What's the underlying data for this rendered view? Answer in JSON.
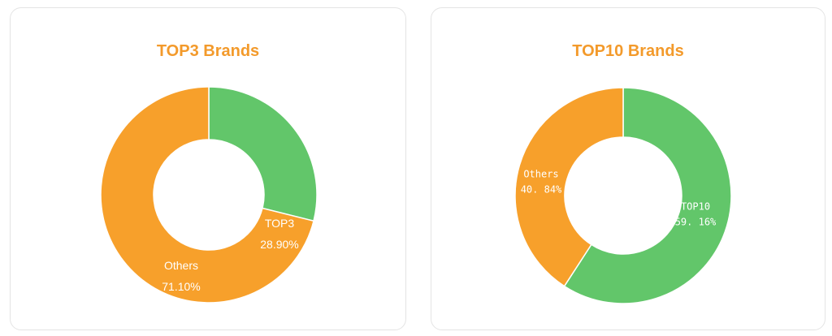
{
  "charts": [
    {
      "title": "TOP3 Brands",
      "chart_data": {
        "type": "pie",
        "donut": true,
        "title": "TOP3 Brands",
        "categories": [
          "TOP3",
          "Others"
        ],
        "values": [
          28.9,
          71.1
        ],
        "labels": [
          "28.90%",
          "71.10%"
        ],
        "colors": [
          "#62c66a",
          "#f7a02b"
        ]
      }
    },
    {
      "title": "TOP10 Brands",
      "chart_data": {
        "type": "pie",
        "donut": true,
        "title": "TOP10 Brands",
        "categories": [
          "TOP10",
          "Others"
        ],
        "values": [
          59.16,
          40.84
        ],
        "labels": [
          "59. 16%",
          "40. 84%"
        ],
        "colors": [
          "#62c66a",
          "#f7a02b"
        ]
      }
    }
  ]
}
